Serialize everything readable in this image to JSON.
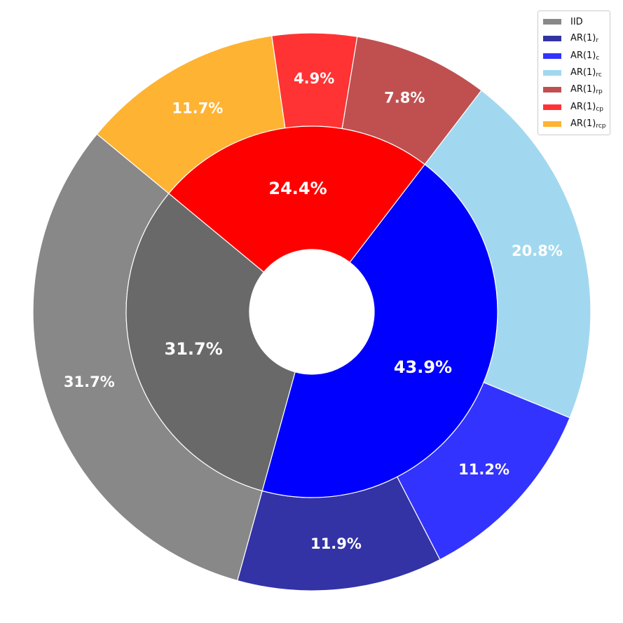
{
  "chart_data": {
    "type": "pie",
    "title": "",
    "center": [
      445,
      445
    ],
    "inner_ring": {
      "slices": [
        {
          "label": "31.7%",
          "value": 31.7,
          "color": "#696969"
        },
        {
          "label": "43.9%",
          "value": 43.9,
          "color": "#0000ff"
        },
        {
          "label": "24.4%",
          "value": 24.4,
          "color": "#ff0000"
        }
      ]
    },
    "outer_ring": {
      "slices": [
        {
          "label": "31.7%",
          "value": 31.7,
          "color": "#888888"
        },
        {
          "label": "11.9%",
          "value": 11.9,
          "color": "#3333a6"
        },
        {
          "label": "11.2%",
          "value": 11.2,
          "color": "#3333ff"
        },
        {
          "label": "20.8%",
          "value": 20.8,
          "color": "#a1d8ef"
        },
        {
          "label": "7.8%",
          "value": 7.8,
          "color": "#c05050"
        },
        {
          "label": "4.9%",
          "value": 4.9,
          "color": "#ff3333"
        },
        {
          "label": "11.7%",
          "value": 11.7,
          "color": "#ffb333"
        }
      ]
    },
    "legend": {
      "placement": "top-right",
      "entries": [
        {
          "base": "IID",
          "sub": "",
          "color": "#888888"
        },
        {
          "base": "AR(1)",
          "sub": "r",
          "color": "#3333a6"
        },
        {
          "base": "AR(1)",
          "sub": "c",
          "color": "#3333ff"
        },
        {
          "base": "AR(1)",
          "sub": "rc",
          "color": "#a1d8ef"
        },
        {
          "base": "AR(1)",
          "sub": "rp",
          "color": "#c05050"
        },
        {
          "base": "AR(1)",
          "sub": "cp",
          "color": "#ff3333"
        },
        {
          "base": "AR(1)",
          "sub": "rcp",
          "color": "#ffb333"
        }
      ]
    }
  }
}
